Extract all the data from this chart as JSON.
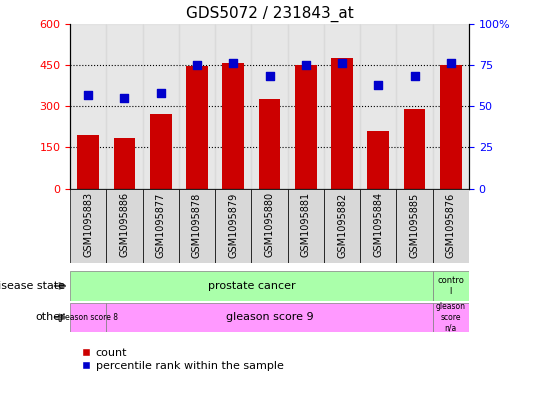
{
  "title": "GDS5072 / 231843_at",
  "samples": [
    "GSM1095883",
    "GSM1095886",
    "GSM1095877",
    "GSM1095878",
    "GSM1095879",
    "GSM1095880",
    "GSM1095881",
    "GSM1095882",
    "GSM1095884",
    "GSM1095885",
    "GSM1095876"
  ],
  "counts": [
    195,
    185,
    270,
    445,
    455,
    325,
    450,
    475,
    210,
    290,
    450
  ],
  "percentiles": [
    57,
    55,
    58,
    75,
    76,
    68,
    75,
    76,
    63,
    68,
    76
  ],
  "ylim_left": [
    0,
    600
  ],
  "ylim_right": [
    0,
    100
  ],
  "yticks_left": [
    0,
    150,
    300,
    450,
    600
  ],
  "yticks_right": [
    0,
    25,
    50,
    75,
    100
  ],
  "bar_color": "#cc0000",
  "dot_color": "#0000cc",
  "bar_width": 0.6,
  "dot_size": 30,
  "grid_yticks": [
    150,
    300,
    450
  ],
  "annotation_disease": "disease state",
  "annotation_other": "other",
  "disease_colors": [
    "#aaffaa",
    "#aaffaa"
  ],
  "other_colors": [
    "#ff99ff",
    "#ff99ff",
    "#ff99ff"
  ],
  "legend_count": "count",
  "legend_percentile": "percentile rank within the sample",
  "title_fontsize": 11,
  "tick_fontsize": 7,
  "label_fontsize": 8,
  "annot_fontsize": 8,
  "legend_fontsize": 8
}
